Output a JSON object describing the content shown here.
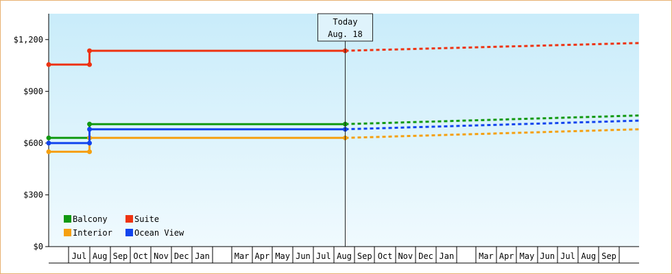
{
  "chart_data": {
    "type": "line",
    "step": true,
    "today_marker": {
      "line1": "Today",
      "line2": "Aug. 18",
      "x": "2018-08-18"
    },
    "y_ticks": [
      "$0",
      "$300",
      "$600",
      "$900",
      "$1,200"
    ],
    "ylim": [
      0,
      1350
    ],
    "xlim": [
      "2017-06-01",
      "2019-10-31"
    ],
    "month_labels": [
      {
        "label": "Jul",
        "date": "2017-07-01"
      },
      {
        "label": "Aug",
        "date": "2017-08-01"
      },
      {
        "label": "Sep",
        "date": "2017-09-01"
      },
      {
        "label": "Oct",
        "date": "2017-10-01"
      },
      {
        "label": "Nov",
        "date": "2017-11-01"
      },
      {
        "label": "Dec",
        "date": "2017-12-01"
      },
      {
        "label": "Jan",
        "date": "2018-01-01"
      },
      {
        "label": "Mar",
        "date": "2018-03-01"
      },
      {
        "label": "Apr",
        "date": "2018-04-01"
      },
      {
        "label": "May",
        "date": "2018-05-01"
      },
      {
        "label": "Jun",
        "date": "2018-06-01"
      },
      {
        "label": "Jul",
        "date": "2018-07-01"
      },
      {
        "label": "Aug",
        "date": "2018-08-01"
      },
      {
        "label": "Sep",
        "date": "2018-09-01"
      },
      {
        "label": "Oct",
        "date": "2018-10-01"
      },
      {
        "label": "Nov",
        "date": "2018-11-01"
      },
      {
        "label": "Dec",
        "date": "2018-12-01"
      },
      {
        "label": "Jan",
        "date": "2019-01-01"
      },
      {
        "label": "Mar",
        "date": "2019-03-01"
      },
      {
        "label": "Apr",
        "date": "2019-04-01"
      },
      {
        "label": "May",
        "date": "2019-05-01"
      },
      {
        "label": "Jun",
        "date": "2019-06-01"
      },
      {
        "label": "Jul",
        "date": "2019-07-01"
      },
      {
        "label": "Aug",
        "date": "2019-08-01"
      },
      {
        "label": "Sep",
        "date": "2019-09-01"
      }
    ],
    "legend": {
      "placement": "bottom-left"
    },
    "series": [
      {
        "name": "Balcony",
        "color": "#119911",
        "points": [
          {
            "x": "2017-06-01",
            "y": 630
          },
          {
            "x": "2017-08-01",
            "y": 630
          },
          {
            "x": "2017-08-01",
            "y": 710
          },
          {
            "x": "2018-08-18",
            "y": 710
          }
        ],
        "forecast": [
          {
            "x": "2018-08-18",
            "y": 710
          },
          {
            "x": "2019-10-31",
            "y": 760
          }
        ]
      },
      {
        "name": "Suite",
        "color": "#ee3311",
        "points": [
          {
            "x": "2017-06-01",
            "y": 1055
          },
          {
            "x": "2017-08-01",
            "y": 1055
          },
          {
            "x": "2017-08-01",
            "y": 1135
          },
          {
            "x": "2018-08-18",
            "y": 1135
          }
        ],
        "forecast": [
          {
            "x": "2018-08-18",
            "y": 1135
          },
          {
            "x": "2019-10-31",
            "y": 1180
          }
        ]
      },
      {
        "name": "Interior",
        "color": "#f5a010",
        "points": [
          {
            "x": "2017-06-01",
            "y": 550
          },
          {
            "x": "2017-08-01",
            "y": 550
          },
          {
            "x": "2017-08-01",
            "y": 630
          },
          {
            "x": "2018-08-18",
            "y": 630
          }
        ],
        "forecast": [
          {
            "x": "2018-08-18",
            "y": 630
          },
          {
            "x": "2019-10-31",
            "y": 680
          }
        ]
      },
      {
        "name": "Ocean View",
        "color": "#1144ee",
        "points": [
          {
            "x": "2017-06-01",
            "y": 600
          },
          {
            "x": "2017-08-01",
            "y": 600
          },
          {
            "x": "2017-08-01",
            "y": 680
          },
          {
            "x": "2018-08-18",
            "y": 680
          }
        ],
        "forecast": [
          {
            "x": "2018-08-18",
            "y": 680
          },
          {
            "x": "2019-10-31",
            "y": 730
          }
        ]
      }
    ]
  }
}
